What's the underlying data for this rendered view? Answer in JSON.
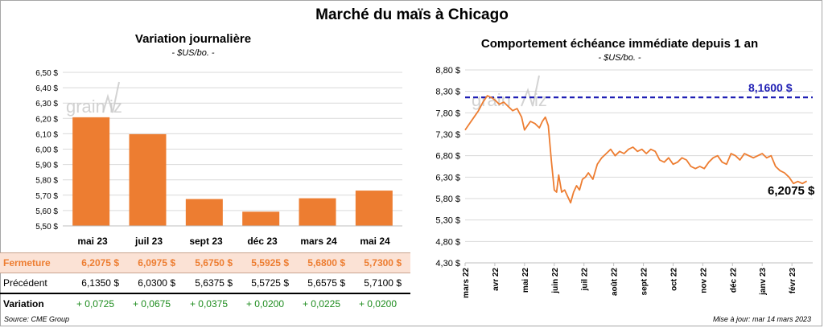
{
  "header": {
    "title": "Marché du maïs à Chicago",
    "source": "Source: CME Group",
    "update": "Mise à jour: mar 14 mars 2023"
  },
  "colors": {
    "bar": "#ED7D31",
    "line": "#ED7D31",
    "reference": "#1F1FB4",
    "row_highlight": "#FBE2D5",
    "positive": "#1E8C1E"
  },
  "chart_data": [
    {
      "type": "bar",
      "title": "Variation journalière",
      "subtitle": "- $US/bo. -",
      "categories": [
        "mai 23",
        "juil 23",
        "sept 23",
        "déc 23",
        "mars 24",
        "mai 24"
      ],
      "values": [
        6.2075,
        6.0975,
        5.675,
        5.5925,
        5.68,
        5.73
      ],
      "ylim": [
        5.5,
        6.5
      ],
      "yticks": [
        "5,50 $",
        "5,60 $",
        "5,70 $",
        "5,80 $",
        "5,90 $",
        "6,00 $",
        "6,10 $",
        "6,20 $",
        "6,30 $",
        "6,40 $",
        "6,50 $"
      ],
      "grid": true
    },
    {
      "type": "line",
      "title": "Comportement échéance immédiate depuis 1 an",
      "subtitle": "- $US/bo. -",
      "ylim": [
        4.3,
        8.8
      ],
      "yticks": [
        "4,30 $",
        "4,80 $",
        "5,30 $",
        "5,80 $",
        "6,30 $",
        "6,80 $",
        "7,30 $",
        "7,80 $",
        "8,30 $",
        "8,80 $"
      ],
      "xticks": [
        "mars 22",
        "avr 22",
        "mai 22",
        "juin 22",
        "juil 22",
        "août 22",
        "sept 22",
        "oct 22",
        "nov 22",
        "déc 22",
        "janv 23",
        "févr 23"
      ],
      "grid": true,
      "reference_value": 8.16,
      "reference_label": "8,1600 $",
      "last_label": "6,2075 $",
      "x": [
        0,
        0.15,
        0.3,
        0.45,
        0.6,
        0.75,
        0.9,
        1.0,
        1.15,
        1.3,
        1.45,
        1.6,
        1.75,
        1.9,
        2.0,
        2.1,
        2.2,
        2.35,
        2.5,
        2.6,
        2.7,
        2.8,
        2.9,
        3.0,
        3.08,
        3.15,
        3.25,
        3.35,
        3.45,
        3.55,
        3.65,
        3.75,
        3.85,
        3.95,
        4.05,
        4.15,
        4.3,
        4.45,
        4.6,
        4.75,
        4.9,
        5.05,
        5.2,
        5.35,
        5.5,
        5.65,
        5.8,
        5.95,
        6.1,
        6.25,
        6.4,
        6.55,
        6.7,
        6.85,
        7.0,
        7.15,
        7.3,
        7.45,
        7.6,
        7.75,
        7.9,
        8.05,
        8.2,
        8.35,
        8.5,
        8.65,
        8.8,
        8.95,
        9.1,
        9.25,
        9.4,
        9.55,
        9.7,
        9.85,
        10.0,
        10.15,
        10.3,
        10.45,
        10.6,
        10.75,
        10.9,
        11.05,
        11.2,
        11.35,
        11.5
      ],
      "y": [
        7.4,
        7.55,
        7.7,
        7.85,
        8.05,
        8.2,
        8.15,
        8.1,
        8.0,
        8.05,
        7.95,
        7.85,
        7.9,
        7.7,
        7.4,
        7.5,
        7.6,
        7.55,
        7.45,
        7.6,
        7.7,
        7.5,
        6.7,
        6.0,
        5.95,
        6.35,
        5.95,
        6.0,
        5.85,
        5.7,
        5.95,
        6.1,
        6.0,
        6.25,
        6.3,
        6.4,
        6.25,
        6.6,
        6.75,
        6.85,
        6.95,
        6.8,
        6.9,
        6.85,
        6.95,
        7.0,
        6.9,
        6.95,
        6.85,
        6.95,
        6.9,
        6.7,
        6.65,
        6.75,
        6.6,
        6.65,
        6.75,
        6.7,
        6.55,
        6.5,
        6.55,
        6.5,
        6.65,
        6.75,
        6.8,
        6.65,
        6.6,
        6.85,
        6.8,
        6.7,
        6.85,
        6.8,
        6.75,
        6.8,
        6.85,
        6.75,
        6.8,
        6.55,
        6.45,
        6.4,
        6.3,
        6.15,
        6.2,
        6.15,
        6.2075
      ]
    }
  ],
  "table": {
    "columns": [
      "mai 23",
      "juil 23",
      "sept 23",
      "déc 23",
      "mars 24",
      "mai 24"
    ],
    "rows": [
      {
        "label": "Fermeture",
        "values": [
          "6,2075  $",
          "6,0975  $",
          "5,6750  $",
          "5,5925  $",
          "5,6800  $",
          "5,7300  $"
        ]
      },
      {
        "label": "Précédent",
        "values": [
          "6,1350  $",
          "6,0300  $",
          "5,6375  $",
          "5,5725  $",
          "5,6575  $",
          "5,7100  $"
        ]
      },
      {
        "label": "Variation",
        "values": [
          "+ 0,0725",
          "+ 0,0675",
          "+ 0,0375",
          "+ 0,0200",
          "+ 0,0225",
          "+ 0,0200"
        ]
      }
    ]
  },
  "watermark": {
    "text": "grain",
    "suffix": "iz"
  }
}
